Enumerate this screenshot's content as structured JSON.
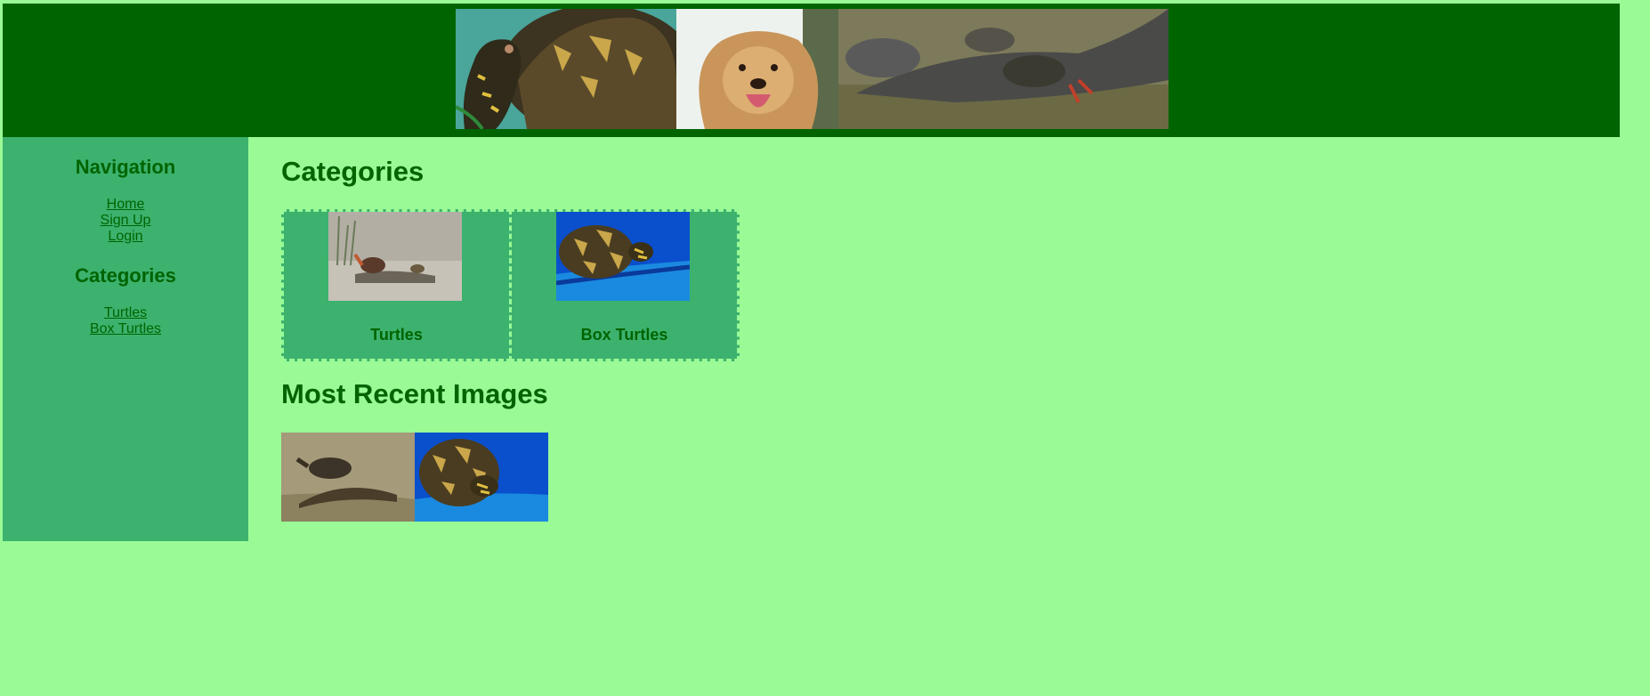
{
  "header": {
    "banner_icon": "animals-banner-image"
  },
  "sidebar": {
    "navigation_heading": "Navigation",
    "nav_links": [
      "Home",
      "Sign Up",
      "Login"
    ],
    "categories_heading": "Categories",
    "category_links": [
      "Turtles",
      "Box Turtles"
    ]
  },
  "main": {
    "categories_heading": "Categories",
    "categories": [
      {
        "label": "Turtles",
        "icon": "turtle-on-log-image"
      },
      {
        "label": "Box Turtles",
        "icon": "box-turtle-in-blue-tub-image"
      }
    ],
    "recent_heading": "Most Recent Images",
    "recent_images": [
      "turtle-in-water-image",
      "box-turtles-in-blue-tub-image"
    ]
  },
  "colors": {
    "page_bg": "#99fa96",
    "header_bg": "#006400",
    "sidebar_bg": "#3cb26e",
    "text": "#006400"
  }
}
